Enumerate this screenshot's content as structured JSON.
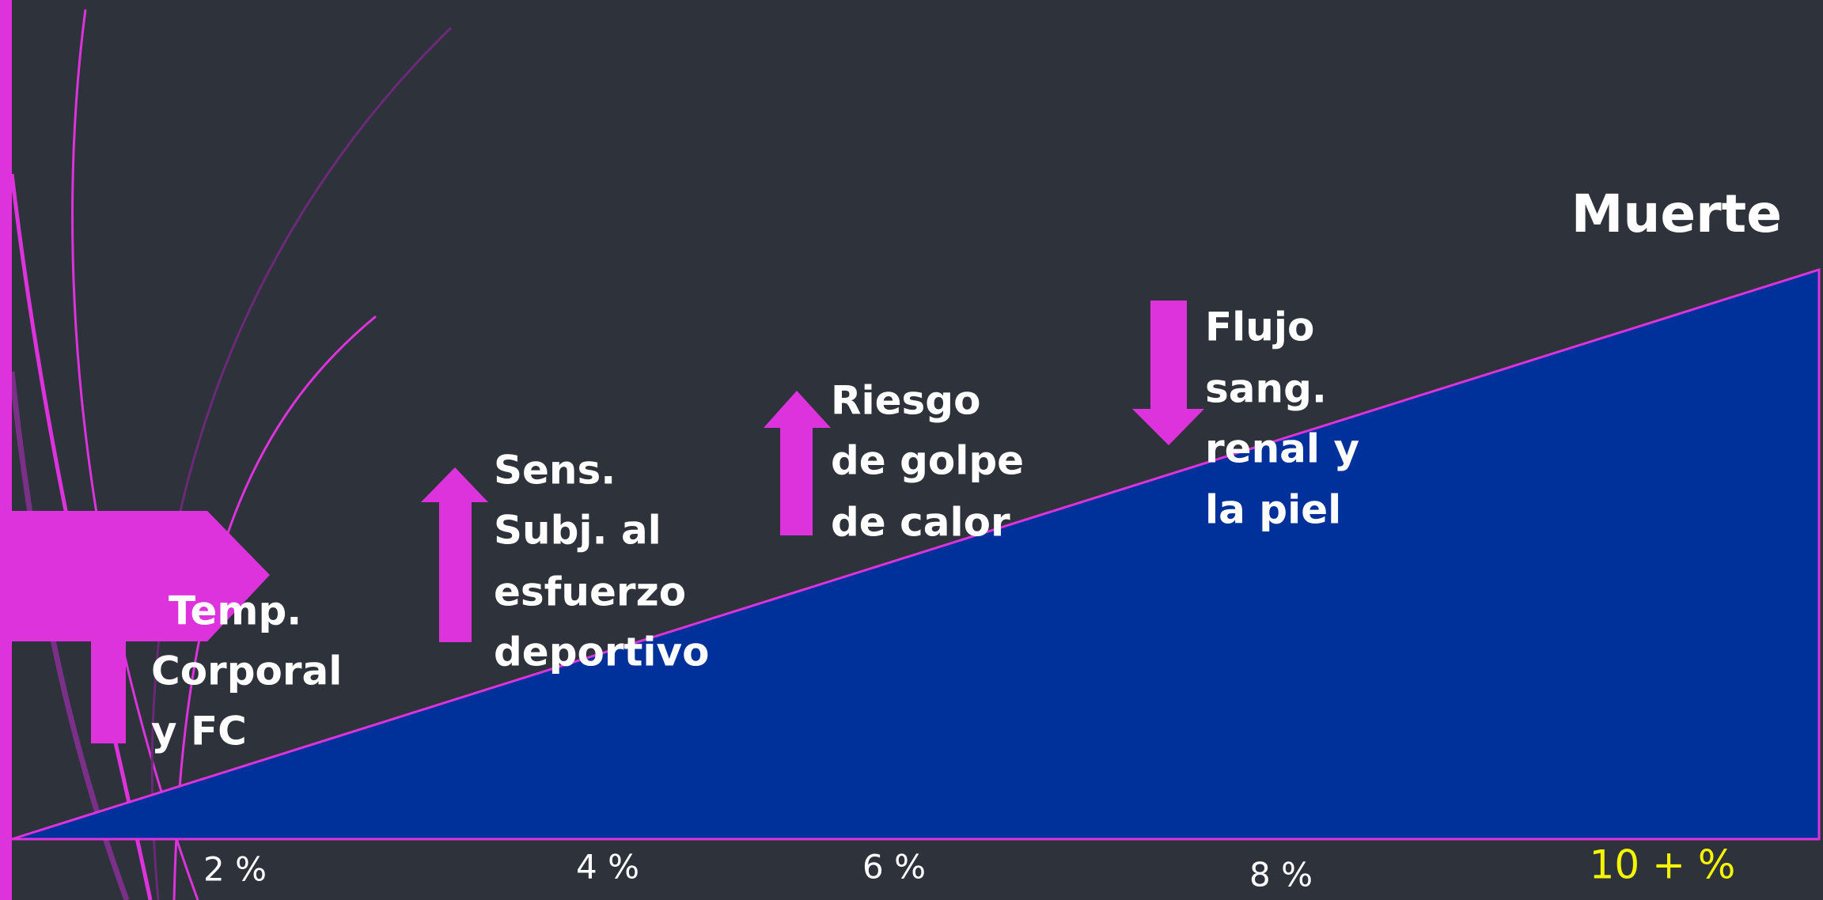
{
  "title": "Muerte",
  "effects": [
    {
      "lines": [
        "Temp.",
        "Corporal",
        "y FC"
      ]
    },
    {
      "lines": [
        "Sens.",
        "Subj. al",
        "esfuerzo",
        "deportivo"
      ]
    },
    {
      "lines": [
        "Riesgo",
        "de golpe",
        "de calor"
      ]
    },
    {
      "lines": [
        "Flujo",
        "sang.",
        "renal y",
        "la piel"
      ]
    }
  ],
  "axis_labels": [
    "2 %",
    "4 %",
    "6 %",
    "8 %",
    "10 + %"
  ]
}
